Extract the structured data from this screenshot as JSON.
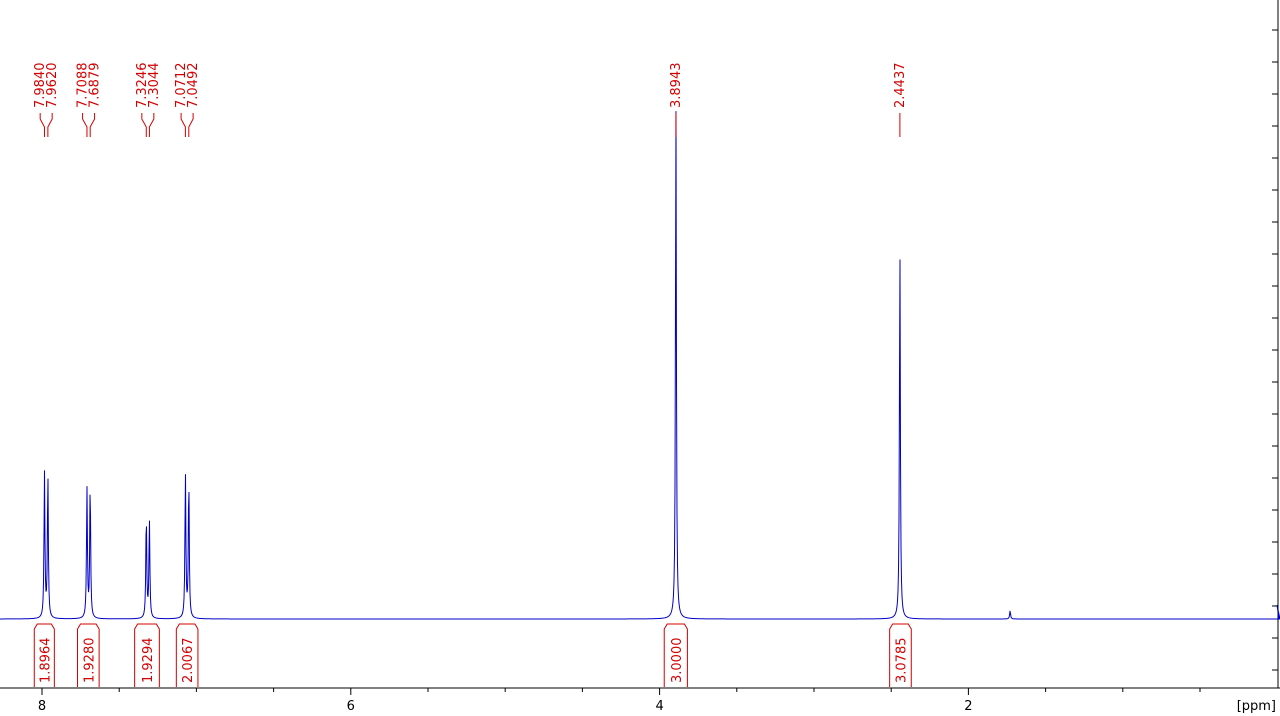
{
  "chart_data": {
    "type": "line",
    "title": "",
    "xlabel": "[ppm]",
    "ylabel": "",
    "xlim": [
      8.2,
      0.2
    ],
    "x_reversed": true,
    "grid": false,
    "x_ticks": [
      {
        "value": 8,
        "label": "8"
      },
      {
        "value": 6,
        "label": "6"
      },
      {
        "value": 4,
        "label": "4"
      },
      {
        "value": 2,
        "label": "2"
      }
    ],
    "x_minor_step": 0.5,
    "peak_labels": [
      {
        "shift": 7.984,
        "label": "7.9840"
      },
      {
        "shift": 7.962,
        "label": "7.9620"
      },
      {
        "shift": 7.7088,
        "label": "7.7088"
      },
      {
        "shift": 7.6879,
        "label": "7.6879"
      },
      {
        "shift": 7.3246,
        "label": "7.3246"
      },
      {
        "shift": 7.3044,
        "label": "7.3044"
      },
      {
        "shift": 7.0712,
        "label": "7.0712"
      },
      {
        "shift": 7.0492,
        "label": "7.0492"
      },
      {
        "shift": 3.8943,
        "label": "3.8943"
      },
      {
        "shift": 2.4437,
        "label": "2.4437"
      }
    ],
    "integrals": [
      {
        "from": 8.05,
        "to": 7.92,
        "value": "1.8964"
      },
      {
        "from": 7.77,
        "to": 7.63,
        "value": "1.9280"
      },
      {
        "from": 7.4,
        "to": 7.24,
        "value": "1.9294"
      },
      {
        "from": 7.13,
        "to": 6.99,
        "value": "2.0067"
      },
      {
        "from": 3.97,
        "to": 3.82,
        "value": "3.0000"
      },
      {
        "from": 2.51,
        "to": 2.37,
        "value": "3.0785"
      }
    ],
    "series": [
      {
        "peaks": [
          {
            "shift": 7.984,
            "intensity": 0.28
          },
          {
            "shift": 7.962,
            "intensity": 0.28
          },
          {
            "shift": 7.7088,
            "intensity": 0.25
          },
          {
            "shift": 7.6879,
            "intensity": 0.26
          },
          {
            "shift": 7.3246,
            "intensity": 0.2
          },
          {
            "shift": 7.3044,
            "intensity": 0.19
          },
          {
            "shift": 7.0712,
            "intensity": 0.28
          },
          {
            "shift": 7.0492,
            "intensity": 0.27
          },
          {
            "shift": 3.8943,
            "intensity": 1.0
          },
          {
            "shift": 2.4437,
            "intensity": 0.72
          },
          {
            "shift": 1.73,
            "intensity": 0.016
          }
        ]
      }
    ]
  }
}
